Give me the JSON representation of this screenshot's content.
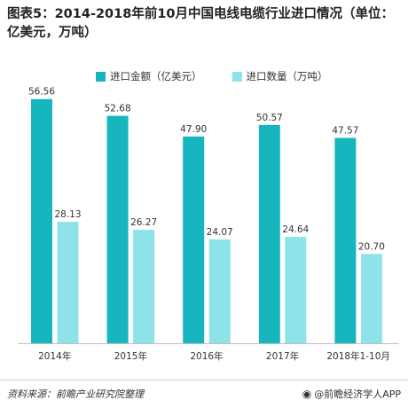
{
  "title": "图表5：2014-2018年前10月中国电线电缆行业进口情况（单位：亿美元，万吨）",
  "footer": {
    "source": "资料来源：前瞻产业研究院整理",
    "brand": "@前瞻经济学人APP"
  },
  "colors": {
    "series1": "#17b6be",
    "series2": "#8ee2ea"
  },
  "chart_data": {
    "type": "bar",
    "title": "图表5：2014-2018年前10月中国电线电缆行业进口情况（单位：亿美元，万吨）",
    "categories": [
      "2014年",
      "2015年",
      "2016年",
      "2017年",
      "2018年1-10月"
    ],
    "series": [
      {
        "name": "进口金额（亿美元）",
        "values": [
          56.56,
          52.68,
          47.9,
          50.57,
          47.57
        ],
        "labels": [
          "56.56",
          "52.68",
          "47.90",
          "50.57",
          "47.57"
        ]
      },
      {
        "name": "进口数量（万吨）",
        "values": [
          28.13,
          26.27,
          24.07,
          24.64,
          20.7
        ],
        "labels": [
          "28.13",
          "26.27",
          "24.07",
          "24.64",
          "20.70"
        ]
      }
    ],
    "ylim": [
      0,
      60
    ],
    "grid": false,
    "legend": "top"
  }
}
